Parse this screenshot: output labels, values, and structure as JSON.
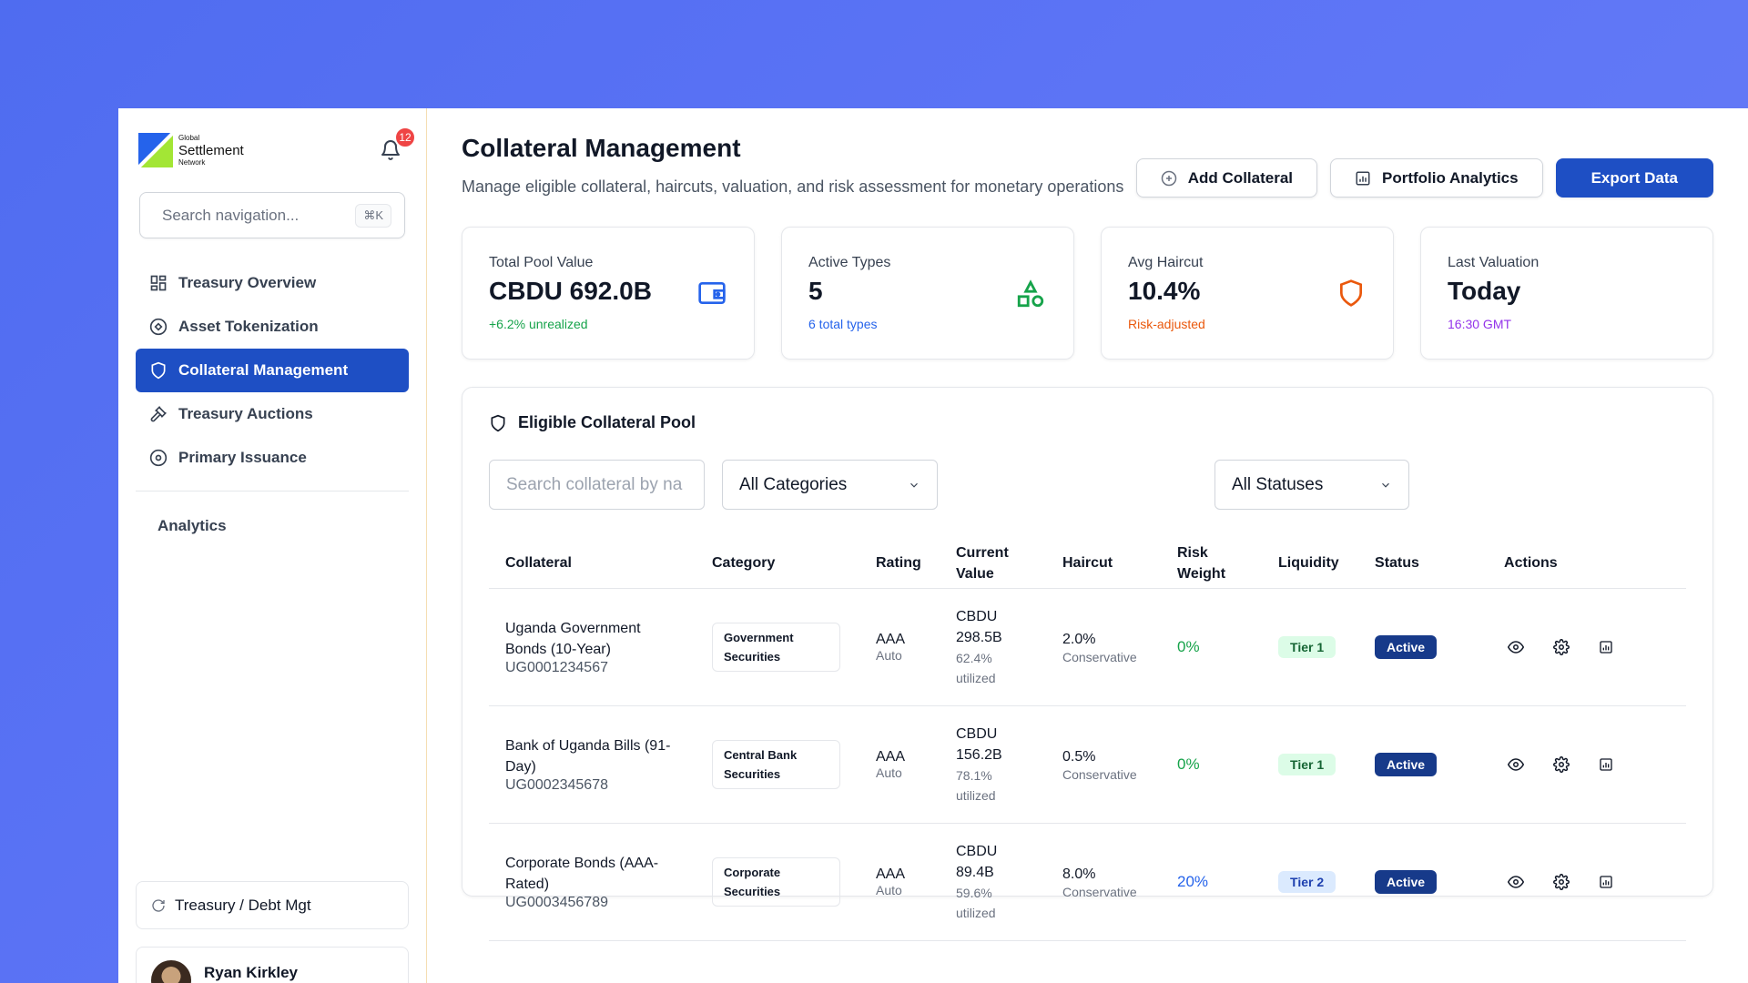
{
  "brand": {
    "line1": "Global",
    "line2": "Settlement",
    "line3": "Network"
  },
  "notifications": {
    "count": "12"
  },
  "sidebar": {
    "search_placeholder": "Search navigation...",
    "shortcut": "⌘K",
    "items": [
      {
        "label": "Treasury Overview",
        "icon": "grid-icon"
      },
      {
        "label": "Asset Tokenization",
        "icon": "token-icon"
      },
      {
        "label": "Collateral Management",
        "icon": "shield-icon",
        "active": true
      },
      {
        "label": "Treasury Auctions",
        "icon": "gavel-icon"
      },
      {
        "label": "Primary Issuance",
        "icon": "circle-icon"
      }
    ],
    "section": "Analytics",
    "switch_label": "Treasury / Debt Mgt",
    "user_name": "Ryan Kirkley"
  },
  "header": {
    "title": "Collateral Management",
    "subtitle": "Manage eligible collateral, haircuts, valuation, and risk assessment for monetary operations",
    "add_label": "Add Collateral",
    "analytics_label": "Portfolio Analytics",
    "export_label": "Export Data"
  },
  "stats": [
    {
      "label": "Total Pool Value",
      "value": "CBDU 692.0B",
      "note": "+6.2% unrealized",
      "note_color": "#16a34a"
    },
    {
      "label": "Active Types",
      "value": "5",
      "note": "6 total types",
      "note_color": "#2563eb"
    },
    {
      "label": "Avg Haircut",
      "value": "10.4%",
      "note": "Risk-adjusted",
      "note_color": "#ea580c"
    },
    {
      "label": "Last Valuation",
      "value": "Today",
      "note": "16:30 GMT",
      "note_color": "#9333ea"
    }
  ],
  "pool": {
    "title": "Eligible Collateral Pool",
    "search_placeholder": "Search collateral by na",
    "category_select": "All Categories",
    "status_select": "All Statuses",
    "columns": [
      "Collateral",
      "Category",
      "Rating",
      "Current Value",
      "Haircut",
      "Risk Weight",
      "Liquidity",
      "Status",
      "Actions"
    ],
    "rows": [
      {
        "name": "Uganda Government Bonds (10-Year)",
        "id": "UG0001234567",
        "category": "Government Securities",
        "rating": "AAA",
        "rating_sub": "Auto",
        "value": "CBDU 298.5B",
        "util": "62.4% utilized",
        "haircut": "2.0%",
        "haircut_sub": "Conservative",
        "risk": "0%",
        "risk_color": "#16a34a",
        "tier": "Tier 1",
        "status": "Active"
      },
      {
        "name": "Bank of Uganda Bills (91-Day)",
        "id": "UG0002345678",
        "category": "Central Bank Securities",
        "rating": "AAA",
        "rating_sub": "Auto",
        "value": "CBDU 156.2B",
        "util": "78.1% utilized",
        "haircut": "0.5%",
        "haircut_sub": "Conservative",
        "risk": "0%",
        "risk_color": "#16a34a",
        "tier": "Tier 1",
        "status": "Active"
      },
      {
        "name": "Corporate Bonds (AAA-Rated)",
        "id": "UG0003456789",
        "category": "Corporate Securities",
        "rating": "AAA",
        "rating_sub": "Auto",
        "value": "CBDU 89.4B",
        "util": "59.6% utilized",
        "haircut": "8.0%",
        "haircut_sub": "Conservative",
        "risk": "20%",
        "risk_color": "#2563eb",
        "tier": "Tier 2",
        "status": "Active"
      }
    ]
  }
}
